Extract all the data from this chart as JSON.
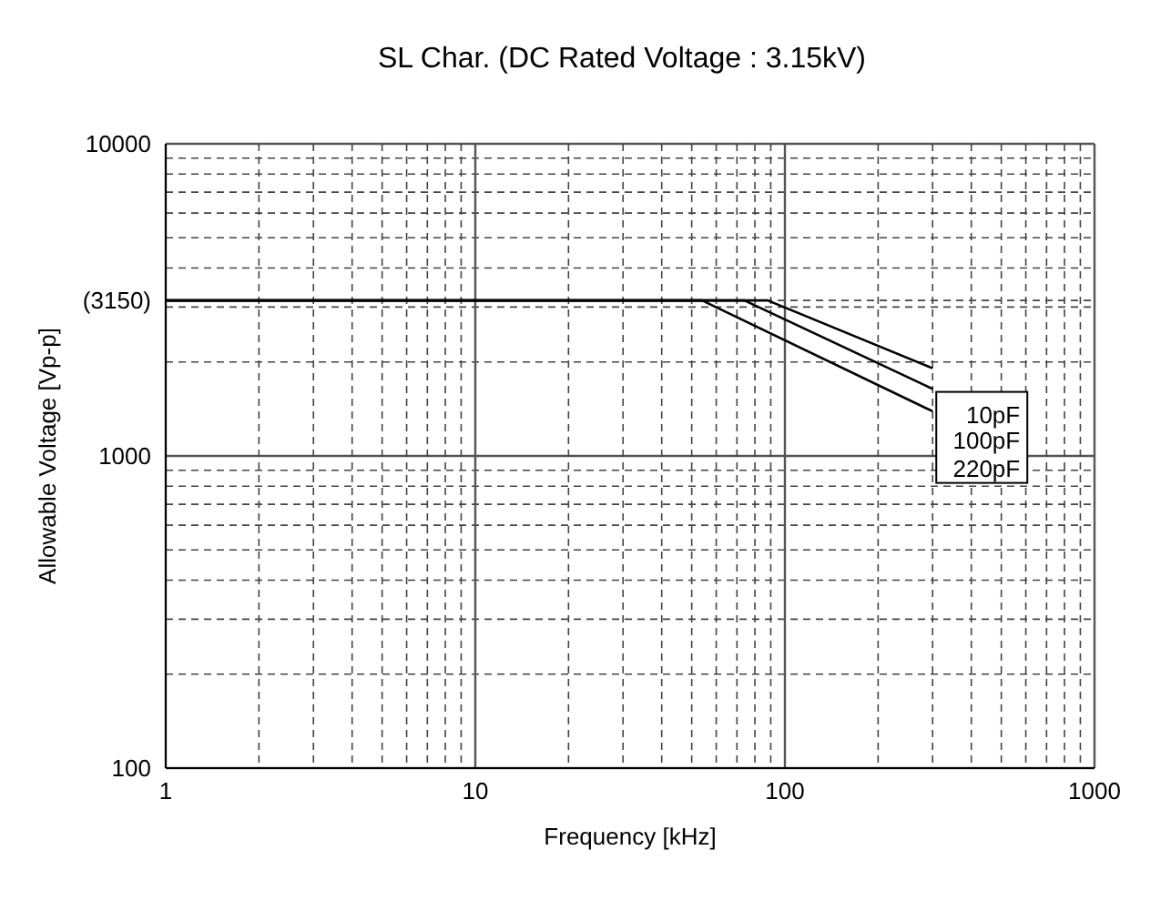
{
  "chart_data": {
    "type": "line",
    "title": "SL Char. (DC Rated Voltage : 3.15kV)",
    "xlabel": "Frequency [kHz]",
    "ylabel": "Allowable Voltage [Vp-p]",
    "log": "xy",
    "grid": true,
    "marker": "none",
    "line_style": "solid",
    "xlim": [
      1,
      1000
    ],
    "xticks": [
      1,
      {
        "value": 2,
        "label": null
      },
      {
        "value": 3,
        "label": null
      },
      {
        "value": 4,
        "label": null
      },
      {
        "value": 5,
        "label": null
      },
      {
        "value": 6,
        "label": null
      },
      {
        "value": 7,
        "label": null
      },
      {
        "value": 8,
        "label": null
      },
      {
        "value": 9,
        "label": null
      },
      10,
      {
        "value": 20,
        "label": null
      },
      {
        "value": 30,
        "label": null
      },
      {
        "value": 40,
        "label": null
      },
      {
        "value": 50,
        "label": null
      },
      {
        "value": 60,
        "label": null
      },
      {
        "value": 70,
        "label": null
      },
      {
        "value": 80,
        "label": null
      },
      {
        "value": 90,
        "label": null
      },
      100,
      {
        "value": 200,
        "label": null
      },
      {
        "value": 300,
        "label": null
      },
      {
        "value": 400,
        "label": null
      },
      {
        "value": 500,
        "label": null
      },
      {
        "value": 600,
        "label": null
      },
      {
        "value": 700,
        "label": null
      },
      {
        "value": 800,
        "label": null
      },
      {
        "value": 900,
        "label": null
      },
      1000
    ],
    "ylim": [
      100,
      10000
    ],
    "yticks": [
      100,
      {
        "value": 200,
        "label": null
      },
      {
        "value": 300,
        "label": null
      },
      {
        "value": 400,
        "label": null
      },
      {
        "value": 500,
        "label": null
      },
      {
        "value": 600,
        "label": null
      },
      {
        "value": 700,
        "label": null
      },
      {
        "value": 800,
        "label": null
      },
      {
        "value": 900,
        "label": null
      },
      1000,
      {
        "value": 2000,
        "label": null
      },
      {
        "value": 3000,
        "label": null
      },
      {
        "value": 3150,
        "label": "(3150)"
      },
      {
        "value": 4000,
        "label": null
      },
      {
        "value": 5000,
        "label": null
      },
      {
        "value": 6000,
        "label": null
      },
      {
        "value": 7000,
        "label": null
      },
      {
        "value": 8000,
        "label": null
      },
      {
        "value": 9000,
        "label": null
      },
      10000
    ],
    "series": [
      {
        "name": "10pF",
        "color": "#000000",
        "x": [
          1,
          88,
          300
        ],
        "values": [
          3150,
          3150,
          1910
        ]
      },
      {
        "name": "100pF",
        "color": "#000000",
        "x": [
          1,
          74,
          300
        ],
        "values": [
          3150,
          3150,
          1640
        ]
      },
      {
        "name": "220pF",
        "color": "#000000",
        "x": [
          1,
          54,
          300
        ],
        "values": [
          3150,
          3150,
          1390
        ]
      }
    ]
  }
}
